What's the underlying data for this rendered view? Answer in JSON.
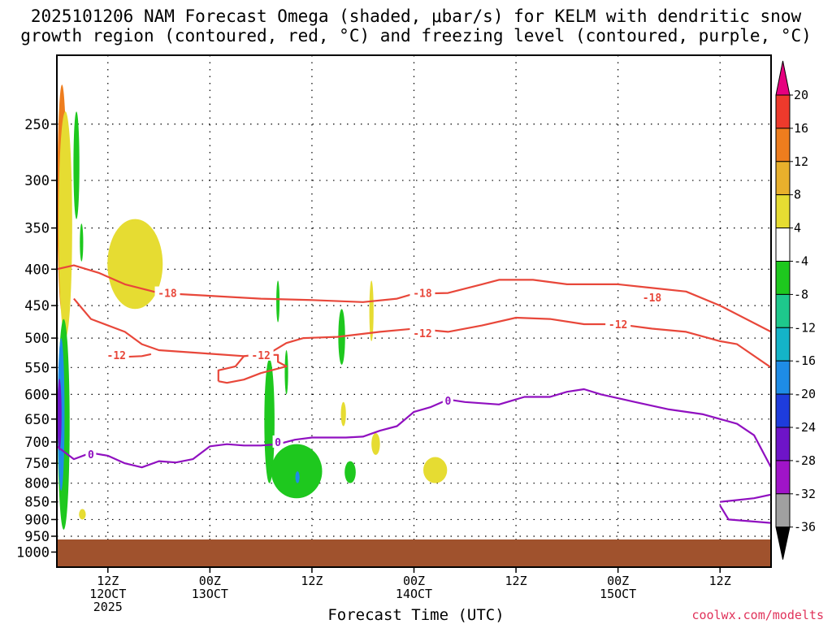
{
  "chart_data": {
    "type": "heatmap",
    "title_line1": "2025101206 NAM Forecast Omega (shaded, μbar/s) for KELM with dendritic snow",
    "title_line2": "growth region (contoured, red, °C) and freezing level (contoured, purple, °C)",
    "xlabel": "Forecast Time (UTC)",
    "ylabel": "",
    "credit": "coolwx.com/modelts",
    "y_axis": {
      "scale": "log-pressure",
      "range_hpa": [
        1050,
        200
      ],
      "ticks": [
        "250",
        "300",
        "350",
        "400",
        "450",
        "500",
        "550",
        "600",
        "650",
        "700",
        "750",
        "800",
        "850",
        "900",
        "950",
        "1000"
      ]
    },
    "x_axis": {
      "range_hours": [
        0,
        84
      ],
      "ticks": [
        {
          "hour": 6,
          "line1": "12Z",
          "line2": "12OCT",
          "line3": "2025"
        },
        {
          "hour": 18,
          "line1": "00Z",
          "line2": "13OCT",
          "line3": ""
        },
        {
          "hour": 30,
          "line1": "12Z",
          "line2": "",
          "line3": ""
        },
        {
          "hour": 42,
          "line1": "00Z",
          "line2": "14OCT",
          "line3": ""
        },
        {
          "hour": 54,
          "line1": "12Z",
          "line2": "",
          "line3": ""
        },
        {
          "hour": 66,
          "line1": "00Z",
          "line2": "15OCT",
          "line3": ""
        },
        {
          "hour": 78,
          "line1": "12Z",
          "line2": "",
          "line3": ""
        }
      ]
    },
    "colorbar": {
      "labels": [
        "20",
        "16",
        "12",
        "8",
        "4",
        "-4",
        "-8",
        "-12",
        "-16",
        "-20",
        "-24",
        "-28",
        "-32",
        "-36"
      ],
      "bins": [
        {
          "from": 20,
          "color": "#e6007f"
        },
        {
          "from": 16,
          "color": "#ee3a2c"
        },
        {
          "from": 12,
          "color": "#ee7d1e"
        },
        {
          "from": 8,
          "color": "#e8b02c"
        },
        {
          "from": 4,
          "color": "#e6dc32"
        },
        {
          "from": -4,
          "color": "#ffffff"
        },
        {
          "from": -8,
          "color": "#1ec81e"
        },
        {
          "from": -12,
          "color": "#1ec88c"
        },
        {
          "from": -16,
          "color": "#14b4c8"
        },
        {
          "from": -20,
          "color": "#1e8ce6"
        },
        {
          "from": -24,
          "color": "#1e3cdc"
        },
        {
          "from": -28,
          "color": "#6e14c8"
        },
        {
          "from": -32,
          "color": "#a014c8"
        },
        {
          "from": -36,
          "color": "#a0a0a0"
        },
        {
          "from": -40,
          "color": "#000000"
        }
      ]
    },
    "isotherms": [
      {
        "label": "-18",
        "color": "#e8473a",
        "kind": "dendritic",
        "points": [
          [
            0,
            400
          ],
          [
            2,
            395
          ],
          [
            5,
            405
          ],
          [
            8,
            420
          ],
          [
            12,
            432
          ],
          [
            18,
            436
          ],
          [
            24,
            440
          ],
          [
            30,
            442
          ],
          [
            36,
            445
          ],
          [
            40,
            440
          ],
          [
            42,
            433
          ],
          [
            46,
            432
          ],
          [
            50,
            420
          ],
          [
            52,
            414
          ],
          [
            56,
            414
          ],
          [
            60,
            420
          ],
          [
            66,
            420
          ],
          [
            70,
            425
          ],
          [
            74,
            430
          ],
          [
            78,
            450
          ],
          [
            84,
            490
          ]
        ],
        "label_positions": [
          [
            13,
            432
          ],
          [
            43,
            432
          ],
          [
            70,
            438
          ]
        ]
      },
      {
        "label": "-12",
        "color": "#e8473a",
        "kind": "dendritic",
        "points": [
          [
            2,
            440
          ],
          [
            4,
            470
          ],
          [
            8,
            490
          ],
          [
            10,
            510
          ],
          [
            12,
            520
          ],
          [
            18,
            526
          ],
          [
            22,
            530
          ],
          [
            25,
            525
          ],
          [
            27,
            508
          ],
          [
            29,
            500
          ],
          [
            33,
            498
          ],
          [
            38,
            490
          ],
          [
            42,
            485
          ],
          [
            46,
            490
          ],
          [
            50,
            480
          ],
          [
            54,
            468
          ],
          [
            58,
            470
          ],
          [
            62,
            478
          ],
          [
            66,
            478
          ],
          [
            70,
            485
          ],
          [
            74,
            490
          ],
          [
            78,
            505
          ],
          [
            80,
            510
          ],
          [
            84,
            550
          ]
        ],
        "label_positions": [
          [
            43,
            492
          ],
          [
            66,
            478
          ]
        ]
      },
      {
        "label": "-12",
        "color": "#e8473a",
        "kind": "dendritic",
        "points": [
          [
            6,
            520
          ],
          [
            7,
            532
          ],
          [
            10,
            530
          ],
          [
            11,
            527
          ],
          [
            10,
            530
          ]
        ],
        "label_positions": [
          [
            7,
            528
          ]
        ]
      },
      {
        "label": "-12",
        "color": "#e8473a",
        "kind": "dendritic",
        "points": [
          [
            19,
            575
          ],
          [
            19,
            555
          ],
          [
            21,
            548
          ],
          [
            22,
            530
          ],
          [
            24,
            528
          ],
          [
            26,
            528
          ],
          [
            26,
            540
          ],
          [
            27,
            548
          ],
          [
            24,
            560
          ],
          [
            22,
            572
          ],
          [
            20,
            578
          ],
          [
            19,
            575
          ]
        ],
        "label_positions": [
          [
            24,
            528
          ]
        ]
      },
      {
        "label": "0",
        "color": "#9010c0",
        "kind": "freezing",
        "points": [
          [
            0,
            710
          ],
          [
            2,
            740
          ],
          [
            4,
            725
          ],
          [
            6,
            732
          ],
          [
            8,
            750
          ],
          [
            10,
            760
          ],
          [
            12,
            745
          ],
          [
            14,
            748
          ],
          [
            16,
            740
          ],
          [
            18,
            710
          ],
          [
            20,
            705
          ],
          [
            22,
            708
          ],
          [
            24,
            708
          ],
          [
            26,
            705
          ],
          [
            28,
            695
          ],
          [
            30,
            690
          ],
          [
            34,
            690
          ],
          [
            36,
            688
          ],
          [
            38,
            675
          ],
          [
            40,
            665
          ],
          [
            42,
            635
          ],
          [
            44,
            625
          ],
          [
            46,
            610
          ],
          [
            48,
            615
          ],
          [
            52,
            620
          ],
          [
            55,
            605
          ],
          [
            58,
            605
          ],
          [
            60,
            595
          ],
          [
            62,
            590
          ],
          [
            64,
            600
          ],
          [
            68,
            615
          ],
          [
            72,
            630
          ],
          [
            76,
            640
          ],
          [
            80,
            660
          ],
          [
            82,
            685
          ],
          [
            84,
            760
          ]
        ],
        "label_positions": [
          [
            4,
            728
          ],
          [
            26,
            700
          ],
          [
            46,
            612
          ]
        ]
      },
      {
        "label": "0",
        "color": "#9010c0",
        "kind": "freezing",
        "points": [
          [
            78,
            850
          ],
          [
            80,
            845
          ],
          [
            82,
            840
          ],
          [
            84,
            830
          ]
        ],
        "label_positions": []
      },
      {
        "label": "0",
        "color": "#9010c0",
        "kind": "freezing",
        "points": [
          [
            78,
            860
          ],
          [
            79,
            900
          ],
          [
            84,
            910
          ]
        ],
        "label_positions": []
      }
    ],
    "omega_features": [
      {
        "name": "upward-large-left",
        "color": "#ee7d1e",
        "center": [
          0.6,
          360
        ],
        "span_hours": 1.1,
        "span_hpa": [
          220,
          460
        ]
      },
      {
        "name": "upward-left-yellow",
        "color": "#e6dc32",
        "center": [
          1.0,
          400
        ],
        "span_hours": 1.6,
        "span_hpa": [
          240,
          500
        ]
      },
      {
        "name": "downward-left-green",
        "color": "#1ec81e",
        "center": [
          0.8,
          700
        ],
        "span_hours": 1.4,
        "span_hpa": [
          470,
          930
        ]
      },
      {
        "name": "downward-left-blue",
        "color": "#1e8ce6",
        "center": [
          0.5,
          650
        ],
        "span_hours": 0.8,
        "span_hpa": [
          500,
          820
        ]
      },
      {
        "name": "downward-left-purple",
        "color": "#6e14c8",
        "center": [
          0.3,
          640
        ],
        "span_hours": 0.5,
        "span_hpa": [
          570,
          720
        ]
      },
      {
        "name": "green-streak-1",
        "color": "#1ec81e",
        "center": [
          2.3,
          290
        ],
        "span_hours": 0.7,
        "span_hpa": [
          240,
          340
        ]
      },
      {
        "name": "green-streak-2",
        "color": "#1ec81e",
        "center": [
          2.9,
          365
        ],
        "span_hours": 0.4,
        "span_hpa": [
          345,
          390
        ]
      },
      {
        "name": "yellow-blob-a",
        "color": "#e6dc32",
        "center": [
          9.2,
          390
        ],
        "span_hours": 6.5,
        "span_hpa": [
          340,
          455
        ]
      },
      {
        "name": "yellow-small-b",
        "color": "#e6dc32",
        "center": [
          3.0,
          885
        ],
        "span_hours": 0.8,
        "span_hpa": [
          870,
          900
        ]
      },
      {
        "name": "green-tall-c",
        "color": "#1ec81e",
        "center": [
          25.0,
          650
        ],
        "span_hours": 1.2,
        "span_hpa": [
          535,
          800
        ]
      },
      {
        "name": "green-band-d",
        "color": "#1ec81e",
        "center": [
          28.2,
          760
        ],
        "span_hours": 6.0,
        "span_hpa": [
          705,
          840
        ]
      },
      {
        "name": "blue-dot-e",
        "color": "#1e8ce6",
        "center": [
          28.3,
          785
        ],
        "span_hours": 0.5,
        "span_hpa": [
          770,
          800
        ]
      },
      {
        "name": "green-streak-f",
        "color": "#1ec81e",
        "center": [
          26.0,
          445
        ],
        "span_hours": 0.3,
        "span_hpa": [
          415,
          475
        ]
      },
      {
        "name": "green-streak-g",
        "color": "#1ec81e",
        "center": [
          27.0,
          560
        ],
        "span_hours": 0.4,
        "span_hpa": [
          520,
          600
        ]
      },
      {
        "name": "green-streak-h",
        "color": "#1ec81e",
        "center": [
          33.5,
          495
        ],
        "span_hours": 0.8,
        "span_hpa": [
          455,
          545
        ]
      },
      {
        "name": "green-blob-i",
        "color": "#1ec81e",
        "center": [
          34.5,
          770
        ],
        "span_hours": 1.3,
        "span_hpa": [
          745,
          800
        ]
      },
      {
        "name": "yellow-streak-j",
        "color": "#e6dc32",
        "center": [
          37.0,
          460
        ],
        "span_hours": 0.5,
        "span_hpa": [
          415,
          505
        ]
      },
      {
        "name": "yellow-small-k",
        "color": "#e6dc32",
        "center": [
          33.7,
          640
        ],
        "span_hours": 0.6,
        "span_hpa": [
          615,
          665
        ]
      },
      {
        "name": "yellow-small-l",
        "color": "#e6dc32",
        "center": [
          37.5,
          700
        ],
        "span_hours": 1.0,
        "span_hpa": [
          680,
          730
        ]
      },
      {
        "name": "yellow-blob-m",
        "color": "#e6dc32",
        "center": [
          44.5,
          770
        ],
        "span_hours": 2.8,
        "span_hpa": [
          735,
          800
        ]
      }
    ],
    "ground_fill": {
      "color": "#a0522d",
      "top_hpa": 960
    }
  }
}
